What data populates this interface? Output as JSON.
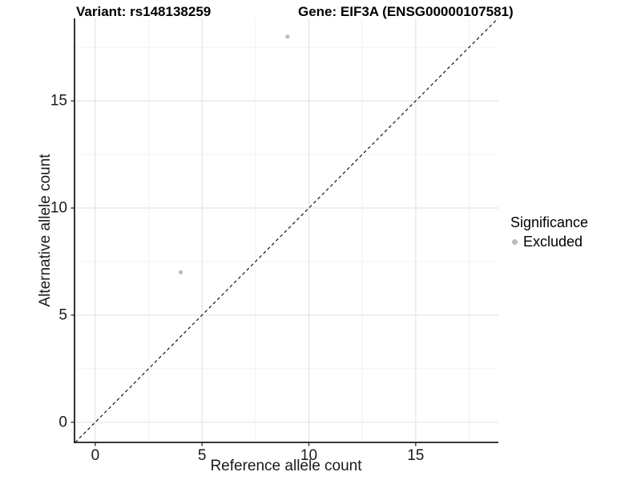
{
  "titles": {
    "variant": "Variant: rs148138259",
    "gene": "Gene: EIF3A (ENSG00000107581)"
  },
  "axes": {
    "x_label": "Reference allele count",
    "y_label": "Alternative allele count"
  },
  "legend": {
    "title": "Significance",
    "items": [
      {
        "label": "Excluded",
        "color": "#bcbcbc"
      }
    ]
  },
  "chart_data": {
    "type": "scatter",
    "title": "Variant: rs148138259   Gene: EIF3A (ENSG00000107581)",
    "xlabel": "Reference allele count",
    "ylabel": "Alternative allele count",
    "series": [
      {
        "name": "Excluded",
        "color": "#bcbcbc",
        "points": [
          {
            "x": 4,
            "y": 7
          },
          {
            "x": 9,
            "y": 18
          }
        ]
      }
    ],
    "identity_line": {
      "slope": 1,
      "intercept": 0,
      "style": "dashed",
      "color": "#000000"
    },
    "x_ticks": [
      0,
      5,
      10,
      15
    ],
    "y_ticks": [
      0,
      5,
      10,
      15
    ],
    "x_minor_ticks": [
      2.5,
      7.5,
      12.5,
      17.5
    ],
    "y_minor_ticks": [
      2.5,
      7.5,
      12.5,
      17.5
    ],
    "xlim": [
      -0.97,
      18.87
    ],
    "ylim": [
      -0.94,
      18.85
    ],
    "point_radius": 2.6,
    "grid": {
      "major_color": "#e4e4e4",
      "minor_color": "#f1f1f1",
      "background": "#ffffff"
    },
    "axis_line_color": "#1b1b1b",
    "legend_position": "right"
  }
}
